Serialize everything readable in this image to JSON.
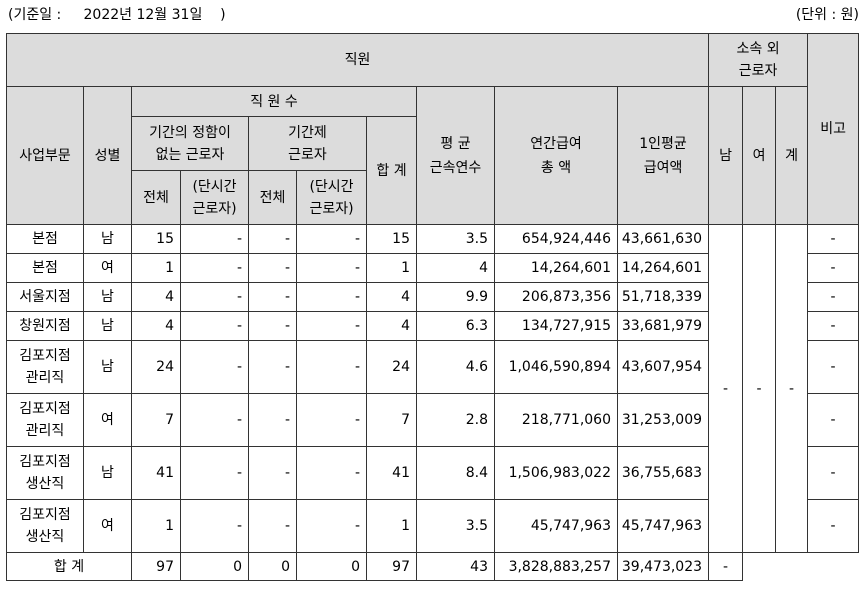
{
  "header": {
    "basis_date": "(기준일 :     2022년 12월 31일    )",
    "unit": "(단위 : 원)"
  },
  "columns": {
    "employees": "직원",
    "outsourced": "소속 외\n근로자",
    "remarks": "비고",
    "division": "사업부문",
    "gender": "성별",
    "headcount": "직 원 수",
    "permanent": "기간의 정함이\n없는 근로자",
    "contract": "기간제\n근로자",
    "total": "합 계",
    "avg_tenure": "평 균\n근속연수",
    "annual_pay": "연간급여\n총 액",
    "avg_pay": "1인평균\n급여액",
    "male": "남",
    "female": "여",
    "sum": "계",
    "all": "전체",
    "part_time": "(단시간\n근로자)"
  },
  "rows": [
    {
      "division": "본점",
      "gender": "남",
      "perm_all": "15",
      "perm_part": "-",
      "cont_all": "-",
      "cont_part": "-",
      "total": "15",
      "tenure": "3.5",
      "annual": "654,924,446",
      "avg": "43,661,630",
      "remark": "-"
    },
    {
      "division": "본점",
      "gender": "여",
      "perm_all": "1",
      "perm_part": "-",
      "cont_all": "-",
      "cont_part": "-",
      "total": "1",
      "tenure": "4",
      "annual": "14,264,601",
      "avg": "14,264,601",
      "remark": "-"
    },
    {
      "division": "서울지점",
      "gender": "남",
      "perm_all": "4",
      "perm_part": "-",
      "cont_all": "-",
      "cont_part": "-",
      "total": "4",
      "tenure": "9.9",
      "annual": "206,873,356",
      "avg": "51,718,339",
      "remark": "-"
    },
    {
      "division": "창원지점",
      "gender": "남",
      "perm_all": "4",
      "perm_part": "-",
      "cont_all": "-",
      "cont_part": "-",
      "total": "4",
      "tenure": "6.3",
      "annual": "134,727,915",
      "avg": "33,681,979",
      "remark": "-"
    },
    {
      "division": "김포지점\n관리직",
      "gender": "남",
      "perm_all": "24",
      "perm_part": "-",
      "cont_all": "-",
      "cont_part": "-",
      "total": "24",
      "tenure": "4.6",
      "annual": "1,046,590,894",
      "avg": "43,607,954",
      "remark": "-"
    },
    {
      "division": "김포지점\n관리직",
      "gender": "여",
      "perm_all": "7",
      "perm_part": "-",
      "cont_all": "-",
      "cont_part": "-",
      "total": "7",
      "tenure": "2.8",
      "annual": "218,771,060",
      "avg": "31,253,009",
      "remark": "-"
    },
    {
      "division": "김포지점\n생산직",
      "gender": "남",
      "perm_all": "41",
      "perm_part": "-",
      "cont_all": "-",
      "cont_part": "-",
      "total": "41",
      "tenure": "8.4",
      "annual": "1,506,983,022",
      "avg": "36,755,683",
      "remark": "-"
    },
    {
      "division": "김포지점\n생산직",
      "gender": "여",
      "perm_all": "1",
      "perm_part": "-",
      "cont_all": "-",
      "cont_part": "-",
      "total": "1",
      "tenure": "3.5",
      "annual": "45,747,963",
      "avg": "45,747,963",
      "remark": "-"
    }
  ],
  "outsourced_values": {
    "male": "-",
    "female": "-",
    "sum": "-"
  },
  "total_row": {
    "label": "합 계",
    "perm_all": "97",
    "perm_part": "0",
    "cont_all": "0",
    "cont_part": "0",
    "total": "97",
    "tenure": "43",
    "annual": "3,828,883,257",
    "avg": "39,473,023",
    "remark": "-"
  }
}
